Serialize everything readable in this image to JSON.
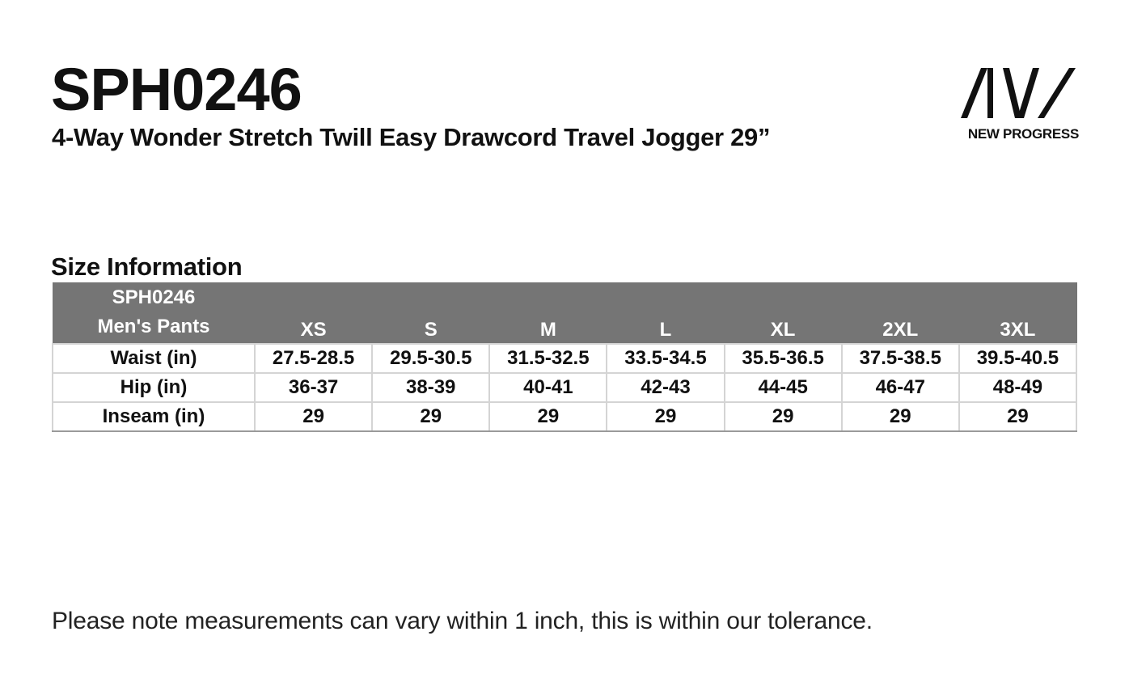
{
  "header": {
    "code": "SPH0246",
    "subtitle": "4-Way Wonder Stretch Twill Easy Drawcord Travel Jogger 29”"
  },
  "logo": {
    "icon": "aiw-logo-icon",
    "text": "NEW PROGRESS"
  },
  "section": {
    "title": "Size Information"
  },
  "table": {
    "header_label_line1": "SPH0246",
    "header_label_line2": "Men's Pants",
    "sizes": [
      "XS",
      "S",
      "M",
      "L",
      "XL",
      "2XL",
      "3XL"
    ],
    "rows": [
      {
        "label": "Waist (in)",
        "values": [
          "27.5-28.5",
          "29.5-30.5",
          "31.5-32.5",
          "33.5-34.5",
          "35.5-36.5",
          "37.5-38.5",
          "39.5-40.5"
        ]
      },
      {
        "label": "Hip (in)",
        "values": [
          "36-37",
          "38-39",
          "40-41",
          "42-43",
          "44-45",
          "46-47",
          "48-49"
        ]
      },
      {
        "label": "Inseam (in)",
        "values": [
          "29",
          "29",
          "29",
          "29",
          "29",
          "29",
          "29"
        ]
      }
    ],
    "colors": {
      "header_bg": "#757575",
      "header_text": "#ffffff",
      "border": "#d4d4d4"
    }
  },
  "footer": {
    "note": "Please note measurements can vary within 1 inch, this is within our tolerance."
  }
}
